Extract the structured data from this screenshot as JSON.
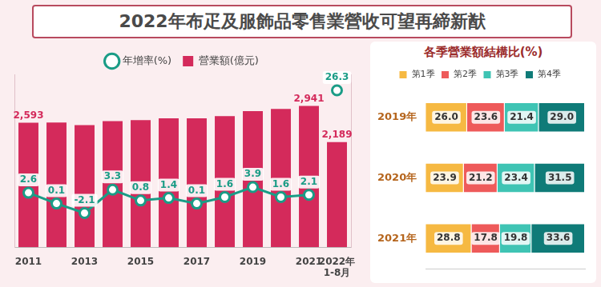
{
  "title": "2022年布疋及服飾品零售業營收可望再締新猷",
  "chart_data": [
    {
      "type": "bar",
      "categories": [
        "2011",
        null,
        "2013",
        null,
        "2015",
        null,
        "2017",
        null,
        "2019",
        null,
        "2021",
        "2022年\n1-8月"
      ],
      "series": [
        {
          "name": "營業額(億元)",
          "type": "bar",
          "color": "#d42a5b",
          "values": [
            2593,
            2596,
            2541,
            2625,
            2646,
            2683,
            2686,
            2729,
            2835,
            2880,
            2941,
            2189
          ],
          "value_labels": [
            "2,593",
            null,
            null,
            null,
            null,
            null,
            null,
            null,
            null,
            null,
            "2,941",
            "2,189"
          ],
          "data_labels": true
        },
        {
          "name": "年增率(%)",
          "type": "line",
          "color": "#1a9c86",
          "axis": "y2",
          "marker": "circle",
          "values": [
            2.6,
            0.1,
            -2.1,
            3.3,
            0.8,
            1.4,
            0.1,
            1.6,
            3.9,
            1.6,
            2.1,
            26.3
          ],
          "data_labels": true
        }
      ],
      "ylim": [
        0,
        3600
      ],
      "y2lim": [
        -10,
        30
      ],
      "tick_labels": "x",
      "grid": false,
      "legend": "top"
    },
    {
      "type": "bar",
      "title": "各季營業額結構比(%)",
      "orientation": "horizontal",
      "stacked": true,
      "categories": [
        "2019年",
        "2020年",
        "2021年"
      ],
      "series": [
        {
          "name": "第1季",
          "color": "#f6b942",
          "values": [
            26.0,
            23.9,
            28.8
          ],
          "value_labels": [
            "26.0",
            "23.9",
            "28.8"
          ]
        },
        {
          "name": "第2季",
          "color": "#ee5a5a",
          "values": [
            23.6,
            21.2,
            17.8
          ],
          "value_labels": [
            "23.6",
            "21.2",
            "17.8"
          ]
        },
        {
          "name": "第3季",
          "color": "#3fc4b4",
          "values": [
            21.4,
            23.4,
            19.8
          ],
          "value_labels": [
            "21.4",
            "23.4",
            "19.8"
          ]
        },
        {
          "name": "第4季",
          "color": "#0f7b78",
          "values": [
            29.0,
            31.5,
            33.6
          ],
          "value_labels": [
            "29.0",
            "31.5",
            "33.6"
          ]
        }
      ],
      "xlim": [
        0,
        100
      ],
      "tick_labels": "y",
      "grid": false,
      "legend": "top",
      "data_labels": true
    }
  ]
}
